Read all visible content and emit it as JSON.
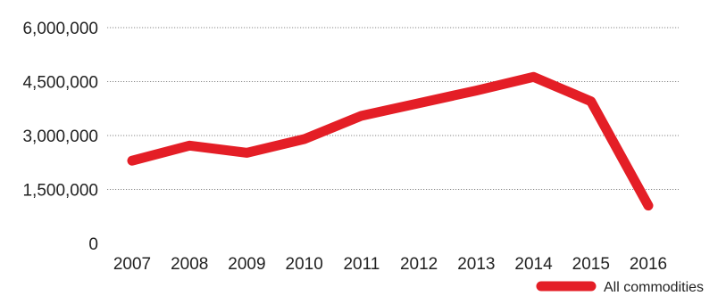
{
  "chart_data": {
    "type": "line",
    "title": "",
    "xlabel": "",
    "ylabel": "",
    "categories": [
      "2007",
      "2008",
      "2009",
      "2010",
      "2011",
      "2012",
      "2013",
      "2014",
      "2015",
      "2016"
    ],
    "series": [
      {
        "name": "All commodities",
        "color": "#e41e26",
        "values": [
          2300000,
          2720000,
          2520000,
          2900000,
          3550000,
          3900000,
          4250000,
          4630000,
          3950000,
          1050000
        ]
      }
    ],
    "ylim": [
      0,
      6000000
    ],
    "yticks": [
      0,
      1500000,
      3000000,
      4500000,
      6000000
    ],
    "ytick_labels": [
      "0",
      "1,500,000",
      "3,000,000",
      "4,500,000",
      "6,000,000"
    ],
    "grid": true,
    "grid_style": "dotted",
    "legend_position": "bottom-right"
  }
}
